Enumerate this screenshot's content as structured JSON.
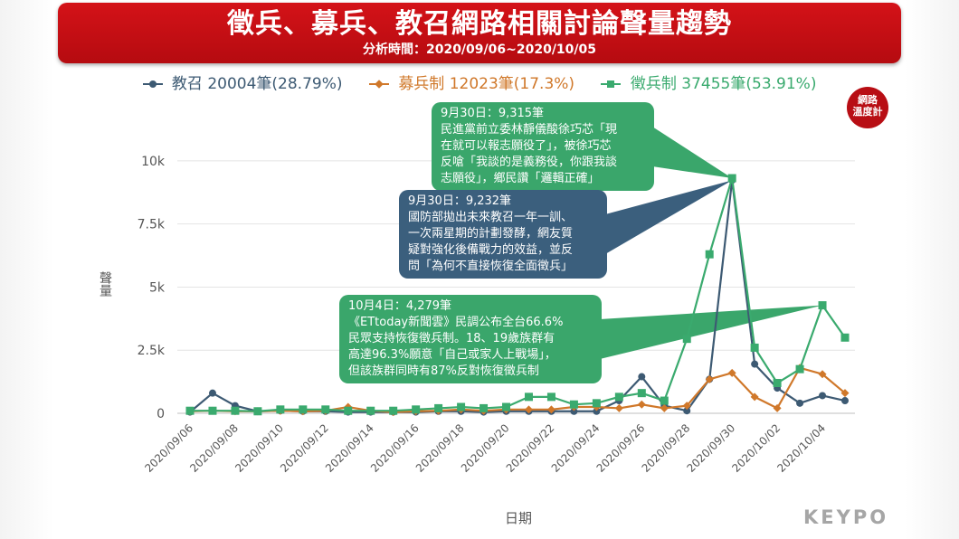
{
  "header": {
    "title": "徵兵、募兵、教召網路相關討論聲量趨勢",
    "subtitle": "分析時間：2020/09/06~2020/10/05"
  },
  "badge": {
    "line1": "網路",
    "line2": "溫度計"
  },
  "logo": "KEYPO",
  "chart_data": {
    "type": "line",
    "xlabel": "日期",
    "ylabel": "聲量",
    "ylim": [
      0,
      11000
    ],
    "yticks": [
      {
        "value": 0,
        "label": "0"
      },
      {
        "value": 2500,
        "label": "2.5k"
      },
      {
        "value": 5000,
        "label": "5k"
      },
      {
        "value": 7500,
        "label": "7.5k"
      },
      {
        "value": 10000,
        "label": "10k"
      }
    ],
    "grid": true,
    "legend_position": "top",
    "x": [
      "2020/09/06",
      "2020/09/07",
      "2020/09/08",
      "2020/09/09",
      "2020/09/10",
      "2020/09/11",
      "2020/09/12",
      "2020/09/13",
      "2020/09/14",
      "2020/09/15",
      "2020/09/16",
      "2020/09/17",
      "2020/09/18",
      "2020/09/19",
      "2020/09/20",
      "2020/09/21",
      "2020/09/22",
      "2020/09/23",
      "2020/09/24",
      "2020/09/25",
      "2020/09/26",
      "2020/09/27",
      "2020/09/28",
      "2020/09/29",
      "2020/09/30",
      "2020/10/01",
      "2020/10/02",
      "2020/10/03",
      "2020/10/04",
      "2020/10/05"
    ],
    "xtick_labels": [
      "2020/09/06",
      "2020/09/08",
      "2020/09/10",
      "2020/09/12",
      "2020/09/14",
      "2020/09/16",
      "2020/09/18",
      "2020/09/20",
      "2020/09/22",
      "2020/09/24",
      "2020/09/26",
      "2020/09/28",
      "2020/09/30",
      "2020/10/02",
      "2020/10/04"
    ],
    "series": [
      {
        "name": "教召 20004筆(28.79%)",
        "color": "#3d5a73",
        "marker": "circle",
        "values": [
          50,
          800,
          300,
          80,
          100,
          80,
          80,
          50,
          50,
          50,
          50,
          80,
          80,
          50,
          80,
          80,
          80,
          80,
          80,
          500,
          1450,
          300,
          100,
          1350,
          9232,
          1950,
          1000,
          400,
          700,
          500
        ]
      },
      {
        "name": "募兵制 12023筆(17.3%)",
        "color": "#d0782a",
        "marker": "diamond",
        "values": [
          80,
          100,
          80,
          80,
          100,
          80,
          100,
          250,
          100,
          50,
          80,
          100,
          150,
          100,
          150,
          150,
          150,
          250,
          250,
          200,
          350,
          200,
          300,
          1350,
          1600,
          650,
          200,
          1800,
          1550,
          800
        ]
      },
      {
        "name": "徵兵制 37455筆(53.91%)",
        "color": "#3aaa6e",
        "marker": "square",
        "values": [
          100,
          100,
          100,
          80,
          150,
          150,
          150,
          100,
          100,
          100,
          150,
          200,
          250,
          200,
          250,
          650,
          650,
          350,
          400,
          650,
          800,
          500,
          2950,
          6300,
          9315,
          2600,
          1200,
          1750,
          4279,
          3000
        ]
      }
    ],
    "annotations": [
      {
        "id": "sep30-conscription",
        "color": "#3aa66b",
        "target_series": 2,
        "target_index": 24,
        "head": "9月30日：9,315筆",
        "body": "民進黨前立委林靜儀酸徐巧芯「現\n在就可以報志願役了」，被徐巧芯\n反嗆「我談的是義務役，你跟我談\n志願役」，鄉民讚「邏輯正確」"
      },
      {
        "id": "sep30-reservist",
        "color": "#3b5f7d",
        "target_series": 0,
        "target_index": 24,
        "head": "9月30日：9,232筆",
        "body": "國防部拋出未來教召一年一訓、\n一次兩星期的計劃發酵，網友質\n疑對強化後備戰力的效益，並反\n問「為何不直接恢復全面徵兵」"
      },
      {
        "id": "oct4-conscription",
        "color": "#3aa66b",
        "target_series": 2,
        "target_index": 28,
        "head": "10月4日：4,279筆",
        "body": "《ETtoday新聞雲》民調公布全台66.6%\n民眾支持恢復徵兵制。18、19歲族群有\n高達96.3%願意「自己或家人上戰場」，\n但該族群同時有87%反對恢復徵兵制"
      }
    ]
  }
}
